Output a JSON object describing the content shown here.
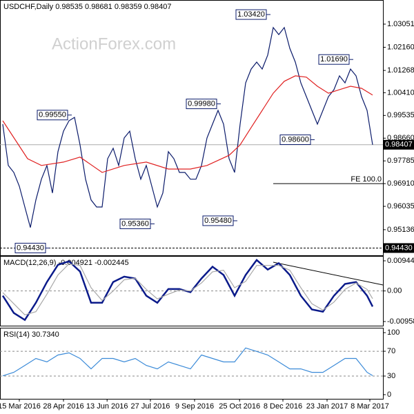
{
  "chart_data": [
    {
      "type": "line",
      "title": "USDCHF,Daily",
      "header_values": [
        0.98535,
        0.98681,
        0.98359,
        0.98407
      ],
      "watermark": "ActionForex.com",
      "xlim": [
        -0.5,
        68.875
      ],
      "ylim": [
        0.9415,
        1.0398
      ],
      "yticks": [
        1.03051,
        {
          "value": 1.0216,
          "label": "1.02160"
        },
        1.01268,
        {
          "value": 1.0041,
          "label": "1.00410"
        },
        0.99535,
        {
          "value": 0.9866,
          "label": "0.98660"
        },
        0.97785,
        {
          "value": 0.9691,
          "label": "0.96910"
        },
        0.96035,
        0.95136
      ],
      "series": [
        {
          "name": "USDCHF",
          "color": "#0a1a6a",
          "values": [
            0.992,
            0.9761,
            0.9734,
            0.9681,
            0.9601,
            0.9522,
            0.9628,
            0.9708,
            0.9761,
            0.9655,
            0.9814,
            0.9893,
            0.9933,
            0.9946,
            0.984,
            0.9708,
            0.9628,
            0.9601,
            0.9601,
            0.9787,
            0.9827,
            0.9761,
            0.9867,
            0.9893,
            0.9787,
            0.9708,
            0.9761,
            0.9681,
            0.9601,
            0.9655,
            0.9814,
            0.9787,
            0.9734,
            0.9734,
            0.9708,
            0.9708,
            0.9761,
            0.9867,
            0.992,
            0.9973,
            0.992,
            0.9787,
            0.9734,
            0.992,
            1.0079,
            1.0132,
            1.0159,
            1.0132,
            1.0186,
            1.0292,
            1.0265,
            1.0292,
            1.0212,
            1.0159,
            1.0079,
            1.0026,
            0.9973,
            0.992,
            0.9973,
            1.0026,
            1.0053,
            1.0106,
            1.0079,
            1.0132,
            1.0106,
            1.0026,
            0.9973,
            0.98407
          ]
        },
        {
          "name": "MA",
          "color": "#e02020",
          "x": [
            0,
            4.5,
            7,
            11,
            14,
            18,
            22,
            26,
            30,
            34,
            37,
            41,
            43,
            45,
            47,
            49,
            51,
            53,
            55,
            57,
            59,
            61,
            63,
            65,
            67
          ],
          "values": [
            0.9933,
            0.9787,
            0.9761,
            0.9774,
            0.9793,
            0.9734,
            0.9761,
            0.9774,
            0.9747,
            0.9747,
            0.9761,
            0.98,
            0.984,
            0.9907,
            0.9973,
            1.0039,
            1.0085,
            1.0106,
            1.0101,
            1.0066,
            1.0039,
            1.0053,
            1.0066,
            1.0058,
            1.0032
          ]
        }
      ],
      "annotations": [
        {
          "label": "1.03420",
          "value": 1.0342,
          "x": 48
        },
        {
          "label": "0.99550",
          "value": 0.9955,
          "x": 12
        },
        {
          "label": "0.99980",
          "value": 0.9998,
          "x": 39
        },
        {
          "label": "1.01690",
          "value": 1.0169,
          "x": 63
        },
        {
          "label": "0.98600",
          "value": 0.986,
          "x": 56
        },
        {
          "label": "0.95360",
          "value": 0.9536,
          "x": 27
        },
        {
          "label": "0.95480",
          "value": 0.9548,
          "x": 42
        },
        {
          "label": "0.94430",
          "value": 0.9443,
          "x": 8
        }
      ],
      "support": {
        "value": 0.9443,
        "label": "0.94430"
      },
      "last": {
        "value": 0.98407,
        "label": "0.98407"
      },
      "fe": {
        "value": 0.9691,
        "label": "FE 100.0",
        "x": 49
      }
    },
    {
      "type": "line",
      "title": "MACD(12,26,9)",
      "header_values": [
        -0.004921,
        -0.002445
      ],
      "xlim": [
        -0.5,
        68.875
      ],
      "ylim": [
        -0.01089,
        0.01096
      ],
      "yticks": [
        0.009446,
        {
          "value": 0,
          "label": "0.00"
        },
        -0.009588
      ],
      "series": [
        {
          "name": "MACD",
          "color": "#0a1a8a",
          "x": [
            0,
            2,
            4,
            6,
            8,
            10,
            12,
            14,
            16,
            18,
            20,
            22,
            24,
            26,
            28,
            30,
            32,
            34,
            36,
            38,
            40,
            42,
            44,
            46,
            48,
            50,
            52,
            54,
            56,
            58,
            60,
            62,
            64,
            66,
            67
          ],
          "values": [
            -0.0015,
            -0.0069,
            -0.0091,
            -0.0037,
            0.0028,
            0.0082,
            0.0093,
            0.0061,
            -0.0037,
            -0.0037,
            0.0028,
            0.0045,
            0.0039,
            -0.0015,
            -0.0037,
            0.0006,
            0.0006,
            -0.0004,
            0.0039,
            0.0076,
            0.005,
            -0.0015,
            0.005,
            0.0097,
            0.0067,
            0.0087,
            0.005,
            -0.0015,
            -0.0058,
            -0.0065,
            -0.0015,
            0.0022,
            0.0028,
            -0.0015,
            -0.0049
          ]
        },
        {
          "name": "Signal",
          "color": "#a8a8a8",
          "x": [
            0,
            2,
            4,
            6,
            8,
            10,
            12,
            14,
            16,
            18,
            20,
            22,
            24,
            26,
            28,
            30,
            32,
            34,
            36,
            38,
            40,
            42,
            44,
            46,
            48,
            50,
            52,
            54,
            56,
            58,
            60,
            62,
            64,
            66,
            67
          ],
          "values": [
            -0.0005,
            -0.004,
            -0.0075,
            -0.0065,
            -0.001,
            0.005,
            0.0085,
            0.008,
            0.001,
            -0.003,
            0,
            0.0035,
            0.004,
            0.0005,
            -0.0025,
            -0.001,
            0.0003,
            0,
            0.0025,
            0.006,
            0.0065,
            0.001,
            0.003,
            0.008,
            0.008,
            0.008,
            0.0065,
            0.001,
            -0.004,
            -0.006,
            -0.0035,
            0.0005,
            0.0025,
            0.0005,
            -0.0024
          ]
        }
      ]
    },
    {
      "type": "line",
      "title": "RSI(14)",
      "header_values": [
        30.734
      ],
      "value_labels": [
        "30.7340"
      ],
      "xlim": [
        -0.5,
        68.875
      ],
      "ylim": [
        -6.7,
        107.9
      ],
      "yticks": [
        100,
        70,
        30,
        0
      ],
      "levels": [
        70,
        30
      ],
      "xticks": [
        {
          "value": 3,
          "label": "15 Mar 2016"
        },
        {
          "value": 11,
          "label": "28 Apr 2016"
        },
        {
          "value": 18.9,
          "label": "13 Jun 2016"
        },
        {
          "value": 26.75,
          "label": "27 Jul 2016"
        },
        {
          "value": 34.75,
          "label": "9 Sep 2016"
        },
        {
          "value": 42.9,
          "label": "25 Oct 2016"
        },
        {
          "value": 50.75,
          "label": "8 Dec 2016"
        },
        {
          "value": 58.75,
          "label": "23 Jan 2017"
        },
        {
          "value": 66.5,
          "label": "8 Mar 2017"
        }
      ],
      "series": [
        {
          "name": "RSI",
          "color": "#3a8ad8",
          "x": [
            0,
            2,
            4,
            6,
            8,
            10,
            12,
            14,
            16,
            18,
            20,
            22,
            24,
            26,
            28,
            30,
            32,
            34,
            36,
            38,
            40,
            42,
            44,
            46,
            48,
            50,
            52,
            54,
            56,
            58,
            60,
            62,
            64,
            66,
            67
          ],
          "values": [
            30.3,
            36,
            47.2,
            58.4,
            52.8,
            64,
            67.4,
            58.4,
            41.6,
            58.4,
            58.4,
            52.8,
            58.4,
            47.2,
            41.6,
            52.8,
            47.2,
            41.6,
            64,
            58.4,
            52.8,
            52.8,
            75.3,
            69.7,
            64,
            52.8,
            41.6,
            41.6,
            36,
            36,
            47.2,
            58.4,
            58.4,
            36,
            30.734
          ]
        }
      ]
    }
  ]
}
